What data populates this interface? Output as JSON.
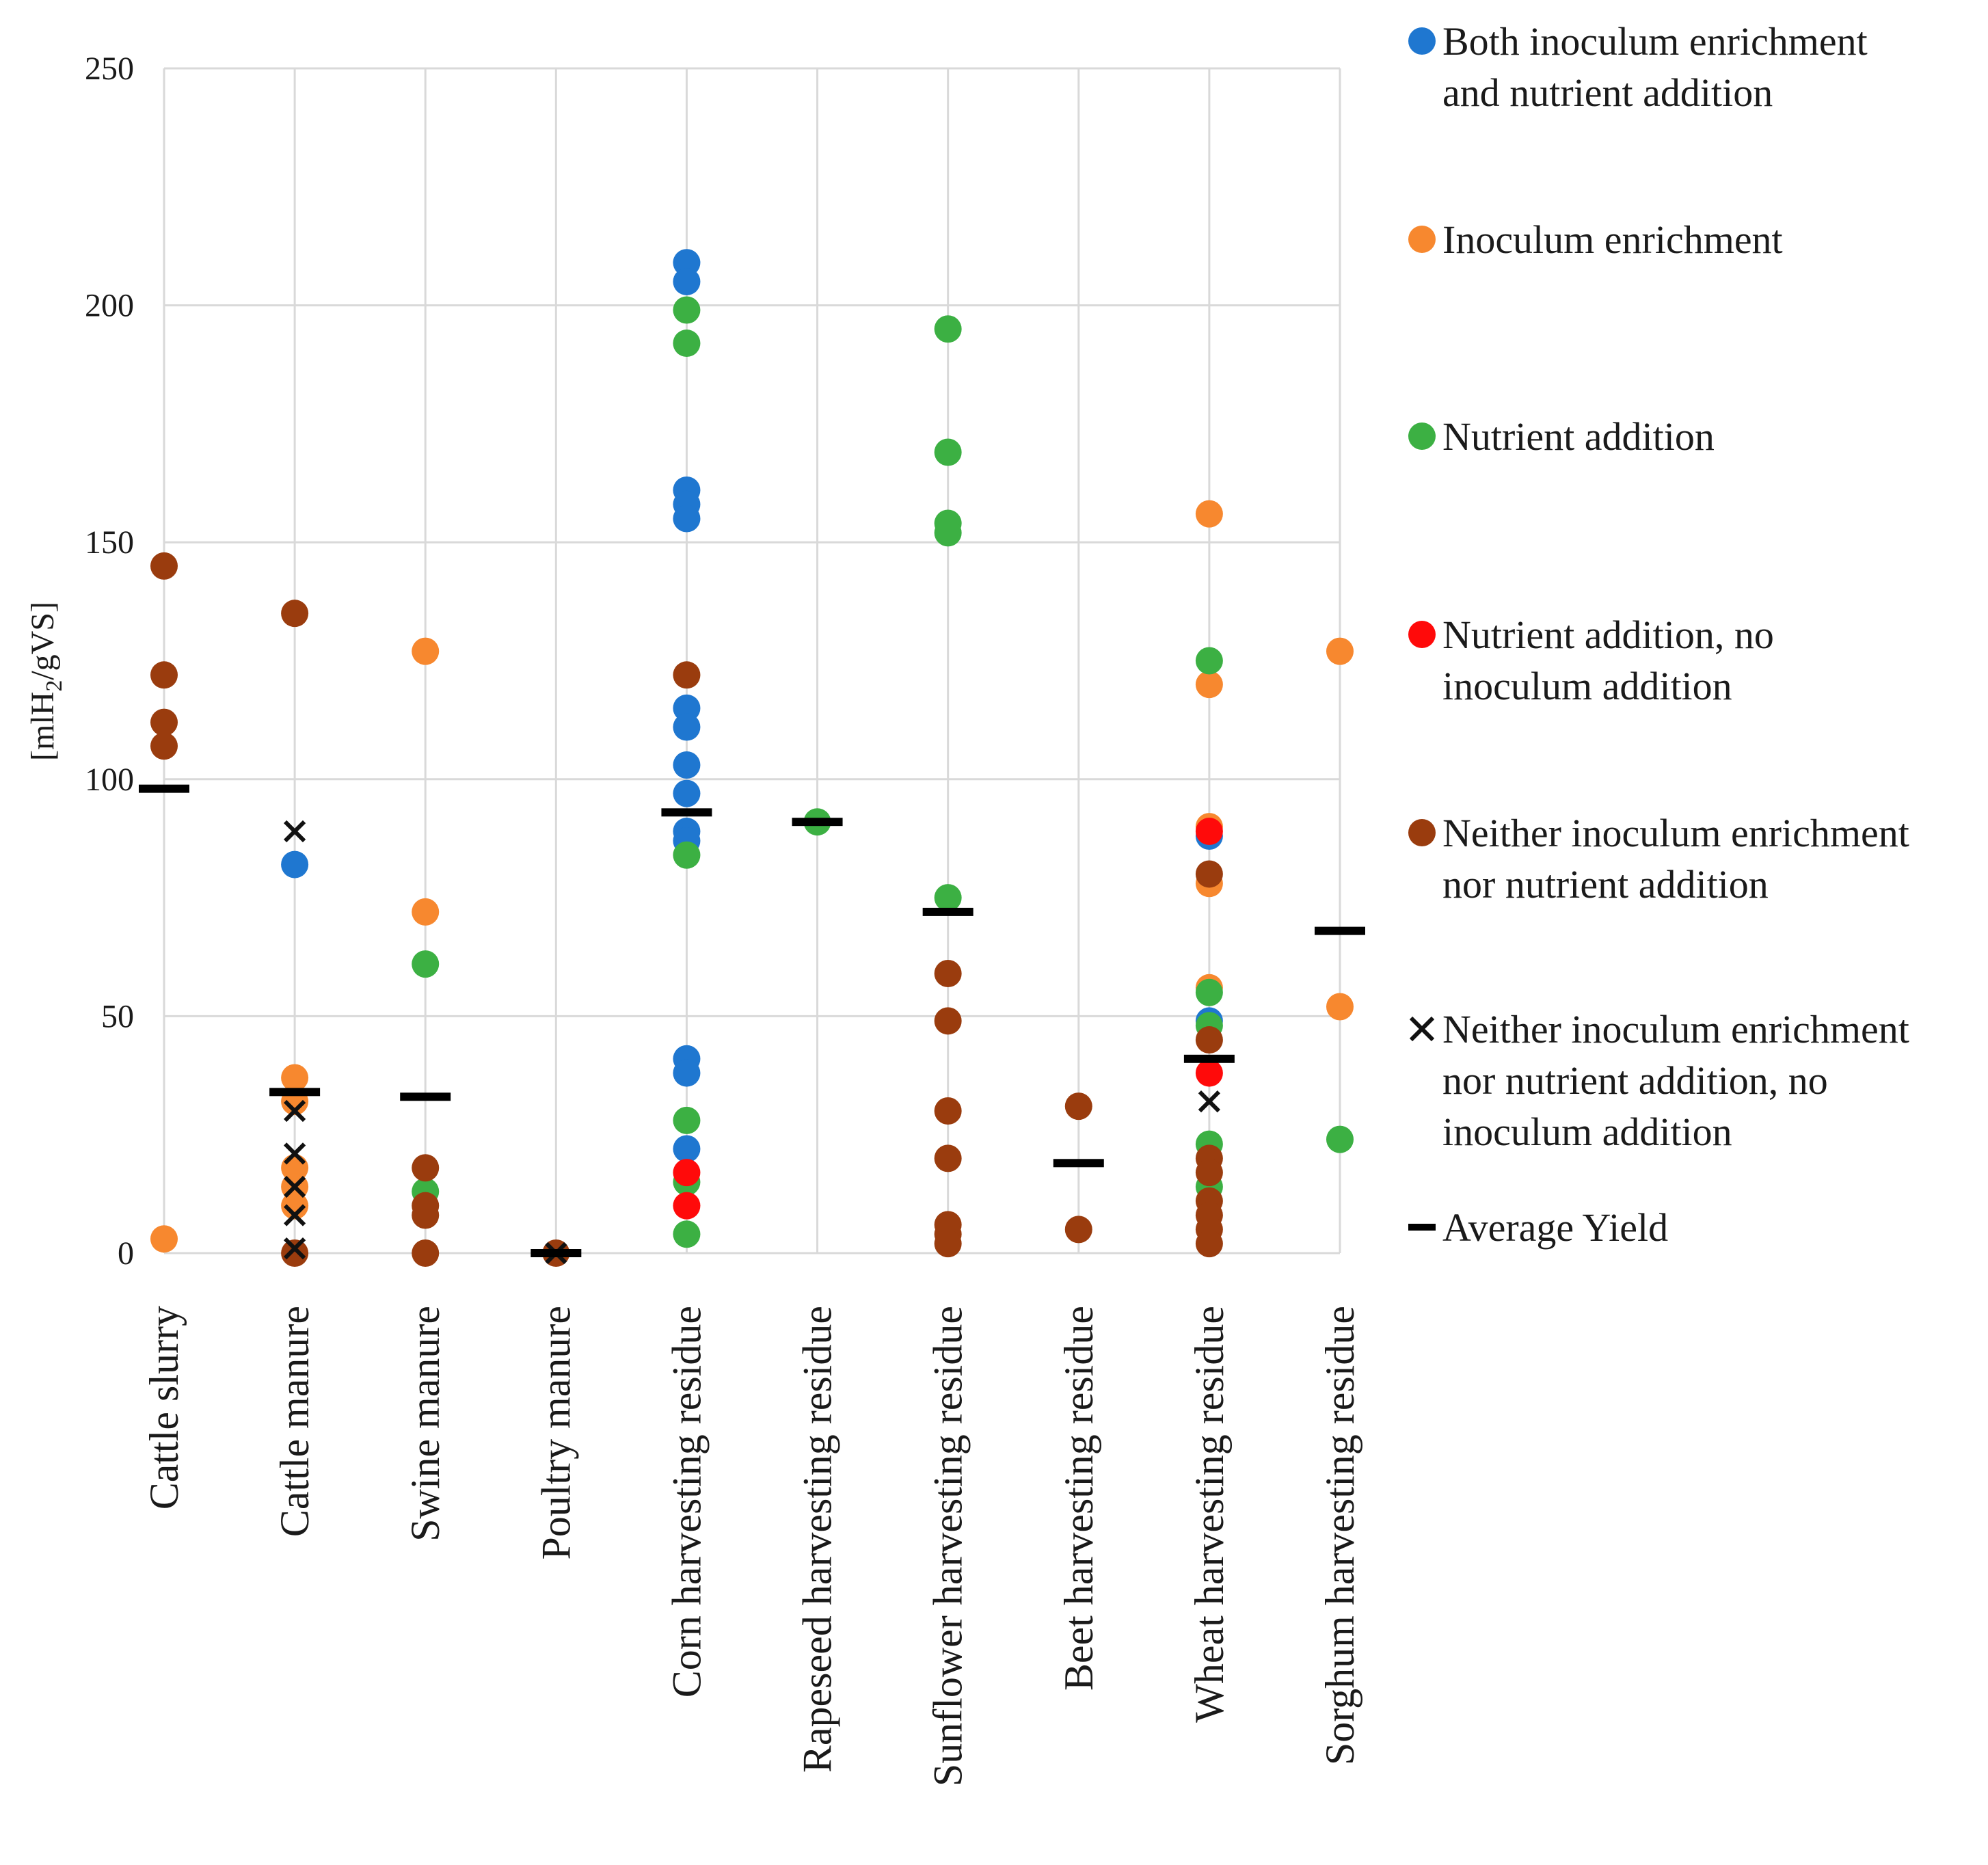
{
  "chart_data": {
    "type": "scatter",
    "title": "",
    "xlabel": "",
    "ylabel_parts": [
      "[mlH",
      "2",
      "/gVS]"
    ],
    "ylim": [
      0,
      250
    ],
    "yticks": [
      0,
      50,
      100,
      150,
      200,
      250
    ],
    "grid": true,
    "legend_position": "right",
    "categories": [
      "Cattle slurry",
      "Cattle manure",
      "Swine manure",
      "Poultry manure",
      "Corn harvesting residue",
      "Rapeseed harvesting residue",
      "Sunflower harvesting residue",
      "Beet harvesting residue",
      "Wheat harvesting residue",
      "Sorghum harvesting residue"
    ],
    "series": [
      {
        "name": "Both inoculum enrichment and nutrient addition",
        "legend_lines": [
          "Both inoculum enrichment",
          "and nutrient addition"
        ],
        "marker": "circle",
        "color": "#1f77d0",
        "points": [
          {
            "category": 1,
            "value": 82
          },
          {
            "category": 4,
            "value": 209
          },
          {
            "category": 4,
            "value": 205
          },
          {
            "category": 4,
            "value": 161
          },
          {
            "category": 4,
            "value": 158
          },
          {
            "category": 4,
            "value": 155
          },
          {
            "category": 4,
            "value": 115
          },
          {
            "category": 4,
            "value": 111
          },
          {
            "category": 4,
            "value": 103
          },
          {
            "category": 4,
            "value": 97
          },
          {
            "category": 4,
            "value": 89
          },
          {
            "category": 4,
            "value": 87
          },
          {
            "category": 4,
            "value": 41
          },
          {
            "category": 4,
            "value": 38
          },
          {
            "category": 4,
            "value": 22
          },
          {
            "category": 8,
            "value": 88
          },
          {
            "category": 8,
            "value": 49
          }
        ]
      },
      {
        "name": "Inoculum enrichment",
        "legend_lines": [
          "Inoculum enrichment"
        ],
        "marker": "circle",
        "color": "#f7882f",
        "points": [
          {
            "category": 0,
            "value": 3
          },
          {
            "category": 1,
            "value": 37
          },
          {
            "category": 1,
            "value": 32
          },
          {
            "category": 1,
            "value": 18
          },
          {
            "category": 1,
            "value": 14
          },
          {
            "category": 1,
            "value": 10
          },
          {
            "category": 2,
            "value": 127
          },
          {
            "category": 2,
            "value": 72
          },
          {
            "category": 8,
            "value": 156
          },
          {
            "category": 8,
            "value": 120
          },
          {
            "category": 8,
            "value": 90
          },
          {
            "category": 8,
            "value": 78
          },
          {
            "category": 8,
            "value": 56
          },
          {
            "category": 9,
            "value": 127
          },
          {
            "category": 9,
            "value": 52
          }
        ]
      },
      {
        "name": "Nutrient addition",
        "legend_lines": [
          "Nutrient addition"
        ],
        "marker": "circle",
        "color": "#3cb043",
        "points": [
          {
            "category": 2,
            "value": 61
          },
          {
            "category": 2,
            "value": 13
          },
          {
            "category": 4,
            "value": 199
          },
          {
            "category": 4,
            "value": 192
          },
          {
            "category": 4,
            "value": 84
          },
          {
            "category": 4,
            "value": 28
          },
          {
            "category": 4,
            "value": 15
          },
          {
            "category": 4,
            "value": 4
          },
          {
            "category": 5,
            "value": 91
          },
          {
            "category": 6,
            "value": 195
          },
          {
            "category": 6,
            "value": 169
          },
          {
            "category": 6,
            "value": 154
          },
          {
            "category": 6,
            "value": 152
          },
          {
            "category": 6,
            "value": 75
          },
          {
            "category": 8,
            "value": 125
          },
          {
            "category": 8,
            "value": 55
          },
          {
            "category": 8,
            "value": 48
          },
          {
            "category": 8,
            "value": 23
          },
          {
            "category": 8,
            "value": 14
          },
          {
            "category": 9,
            "value": 24
          }
        ]
      },
      {
        "name": "Nutrient addition, no inoculum addition",
        "legend_lines": [
          "Nutrient addition, no",
          "inoculum addition"
        ],
        "marker": "circle",
        "color": "#ff0a0a",
        "points": [
          {
            "category": 4,
            "value": 17
          },
          {
            "category": 4,
            "value": 10
          },
          {
            "category": 8,
            "value": 89
          },
          {
            "category": 8,
            "value": 38
          }
        ]
      },
      {
        "name": "Neither inoculum enrichment nor nutrient addition",
        "legend_lines": [
          "Neither inoculum enrichment",
          "nor nutrient addition"
        ],
        "marker": "circle",
        "color": "#9a3c0e",
        "points": [
          {
            "category": 0,
            "value": 145
          },
          {
            "category": 0,
            "value": 122
          },
          {
            "category": 0,
            "value": 112
          },
          {
            "category": 0,
            "value": 107
          },
          {
            "category": 1,
            "value": 135
          },
          {
            "category": 1,
            "value": 0
          },
          {
            "category": 2,
            "value": 18
          },
          {
            "category": 2,
            "value": 10
          },
          {
            "category": 2,
            "value": 8
          },
          {
            "category": 2,
            "value": 0
          },
          {
            "category": 3,
            "value": 0
          },
          {
            "category": 4,
            "value": 122
          },
          {
            "category": 6,
            "value": 59
          },
          {
            "category": 6,
            "value": 49
          },
          {
            "category": 6,
            "value": 30
          },
          {
            "category": 6,
            "value": 20
          },
          {
            "category": 6,
            "value": 6
          },
          {
            "category": 6,
            "value": 4
          },
          {
            "category": 6,
            "value": 2
          },
          {
            "category": 7,
            "value": 31
          },
          {
            "category": 7,
            "value": 5
          },
          {
            "category": 8,
            "value": 80
          },
          {
            "category": 8,
            "value": 45
          },
          {
            "category": 8,
            "value": 20
          },
          {
            "category": 8,
            "value": 17
          },
          {
            "category": 8,
            "value": 11
          },
          {
            "category": 8,
            "value": 8
          },
          {
            "category": 8,
            "value": 5
          },
          {
            "category": 8,
            "value": 2
          }
        ]
      },
      {
        "name": "Neither inoculum enrichment nor nutrient addition, no inoculum addition",
        "legend_lines": [
          "Neither inoculum enrichment",
          "nor nutrient addition, no",
          "inoculum addition"
        ],
        "marker": "x",
        "color": "#111111",
        "points": [
          {
            "category": 1,
            "value": 89
          },
          {
            "category": 1,
            "value": 30
          },
          {
            "category": 1,
            "value": 21
          },
          {
            "category": 1,
            "value": 14
          },
          {
            "category": 1,
            "value": 8
          },
          {
            "category": 1,
            "value": 1
          },
          {
            "category": 3,
            "value": 0
          },
          {
            "category": 8,
            "value": 32
          }
        ]
      },
      {
        "name": "Average Yield",
        "legend_lines": [
          "Average Yield"
        ],
        "marker": "dash",
        "color": "#000000",
        "points": [
          {
            "category": 0,
            "value": 98
          },
          {
            "category": 1,
            "value": 34
          },
          {
            "category": 2,
            "value": 33
          },
          {
            "category": 3,
            "value": 0
          },
          {
            "category": 4,
            "value": 93
          },
          {
            "category": 5,
            "value": 91
          },
          {
            "category": 6,
            "value": 72
          },
          {
            "category": 7,
            "value": 19
          },
          {
            "category": 8,
            "value": 41
          },
          {
            "category": 9,
            "value": 68
          }
        ]
      }
    ]
  }
}
